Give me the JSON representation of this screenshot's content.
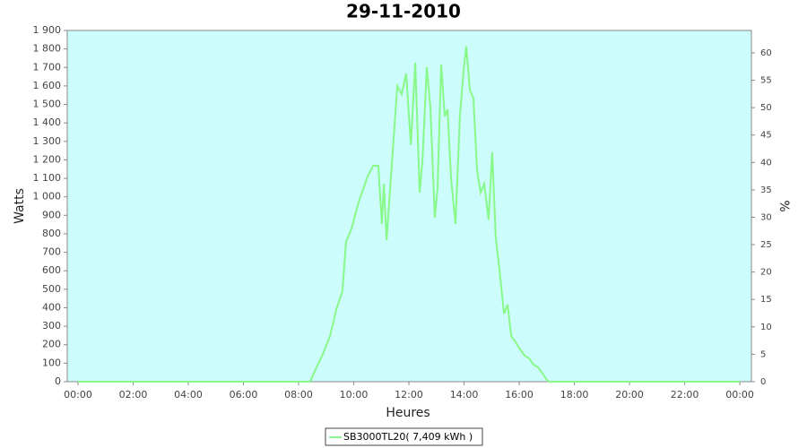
{
  "chart_data": {
    "type": "line",
    "title": "29-11-2010",
    "xlabel": "Heures",
    "ylabel": "Watts",
    "y2label": "%",
    "x": [
      0,
      8.42,
      8.62,
      8.88,
      9.14,
      9.37,
      9.59,
      9.72,
      9.92,
      10.18,
      10.5,
      10.7,
      10.89,
      11.02,
      11.09,
      11.19,
      11.41,
      11.58,
      11.74,
      11.9,
      12.07,
      12.23,
      12.39,
      12.49,
      12.65,
      12.78,
      12.94,
      13.04,
      13.17,
      13.3,
      13.4,
      13.53,
      13.69,
      13.85,
      13.98,
      14.08,
      14.21,
      14.34,
      14.47,
      14.6,
      14.73,
      14.89,
      15.02,
      15.15,
      15.28,
      15.45,
      15.58,
      15.71,
      15.87,
      16.03,
      16.2,
      16.36,
      16.52,
      16.68,
      16.85,
      17.0,
      17.07,
      24
    ],
    "series": [
      {
        "name": "SB3000TL20( 7,409 kWh )",
        "color": "#88f888",
        "values": [
          0,
          0,
          68,
          150,
          247,
          393,
          490,
          756,
          829,
          974,
          1110,
          1168,
          1168,
          853,
          1071,
          766,
          1241,
          1600,
          1556,
          1667,
          1280,
          1726,
          1023,
          1192,
          1701,
          1483,
          887,
          1047,
          1716,
          1435,
          1473,
          1095,
          853,
          1435,
          1677,
          1813,
          1580,
          1532,
          1144,
          1023,
          1071,
          877,
          1241,
          780,
          611,
          368,
          417,
          247,
          213,
          175,
          141,
          126,
          92,
          78,
          44,
          10,
          0,
          0
        ]
      }
    ],
    "xlim": [
      -0.39,
      24.42
    ],
    "xticks": [
      {
        "value": 0,
        "label": "00:00"
      },
      {
        "value": 2,
        "label": "02:00"
      },
      {
        "value": 4,
        "label": "04:00"
      },
      {
        "value": 6,
        "label": "06:00"
      },
      {
        "value": 8,
        "label": "08:00"
      },
      {
        "value": 10,
        "label": "10:00"
      },
      {
        "value": 12,
        "label": "12:00"
      },
      {
        "value": 14,
        "label": "14:00"
      },
      {
        "value": 16,
        "label": "16:00"
      },
      {
        "value": 18,
        "label": "18:00"
      },
      {
        "value": 20,
        "label": "20:00"
      },
      {
        "value": 22,
        "label": "22:00"
      },
      {
        "value": 24,
        "label": "00:00"
      }
    ],
    "ylim": [
      0,
      1900
    ],
    "yticks": [
      0,
      100,
      200,
      300,
      400,
      500,
      600,
      700,
      800,
      900,
      {
        "value": 1000,
        "label": "1 000"
      },
      {
        "value": 1100,
        "label": "1 100"
      },
      {
        "value": 1200,
        "label": "1 200"
      },
      {
        "value": 1300,
        "label": "1 300"
      },
      {
        "value": 1400,
        "label": "1 400"
      },
      {
        "value": 1500,
        "label": "1 500"
      },
      {
        "value": 1600,
        "label": "1 600"
      },
      {
        "value": 1700,
        "label": "1 700"
      },
      {
        "value": 1800,
        "label": "1 800"
      },
      {
        "value": 1900,
        "label": "1 900"
      }
    ],
    "y2lim": [
      0,
      64.08
    ],
    "y2ticks": [
      0,
      5,
      10,
      15,
      20,
      25,
      30,
      35,
      40,
      45,
      50,
      55,
      60
    ],
    "background": "#ccfcfc",
    "legend": "bottom"
  }
}
